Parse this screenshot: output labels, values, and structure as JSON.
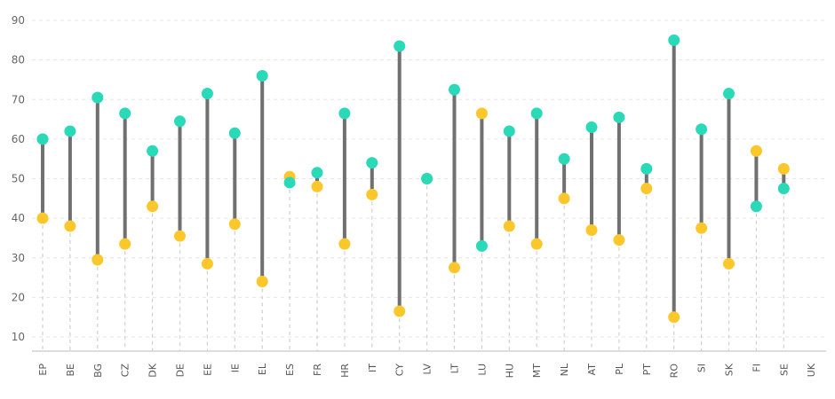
{
  "chart_data": {
    "type": "dumbbell",
    "title": "",
    "xlabel": "",
    "ylabel": "",
    "ylim": [
      5,
      92
    ],
    "yticks": [
      10,
      20,
      30,
      40,
      50,
      60,
      70,
      80,
      90
    ],
    "grid": true,
    "categories": [
      "EP",
      "BE",
      "BG",
      "CZ",
      "DK",
      "DE",
      "EE",
      "IE",
      "EL",
      "ES",
      "FR",
      "HR",
      "IT",
      "CY",
      "LV",
      "LT",
      "LU",
      "HU",
      "MT",
      "NL",
      "AT",
      "PL",
      "PT",
      "RO",
      "SI",
      "SK",
      "FI",
      "SE",
      "UK"
    ],
    "series": [
      {
        "name": "teal",
        "color": "#2ad9b8",
        "values": [
          60,
          62,
          70.5,
          66.5,
          57,
          64.5,
          71.5,
          61.5,
          76,
          49,
          51.5,
          66.5,
          54,
          83.5,
          50,
          72.5,
          33,
          62,
          66.5,
          55,
          63,
          65.5,
          52.5,
          85,
          62.5,
          71.5,
          43,
          47.5,
          null
        ]
      },
      {
        "name": "yellow",
        "color": "#fcc72b",
        "values": [
          40,
          38,
          29.5,
          33.5,
          43,
          35.5,
          28.5,
          38.5,
          24,
          50.5,
          48,
          33.5,
          46,
          16.5,
          50,
          27.5,
          66.5,
          38,
          33.5,
          45,
          37,
          34.5,
          47.5,
          15,
          37.5,
          28.5,
          57,
          52.5,
          null
        ]
      }
    ],
    "connector_color": "#707070"
  }
}
